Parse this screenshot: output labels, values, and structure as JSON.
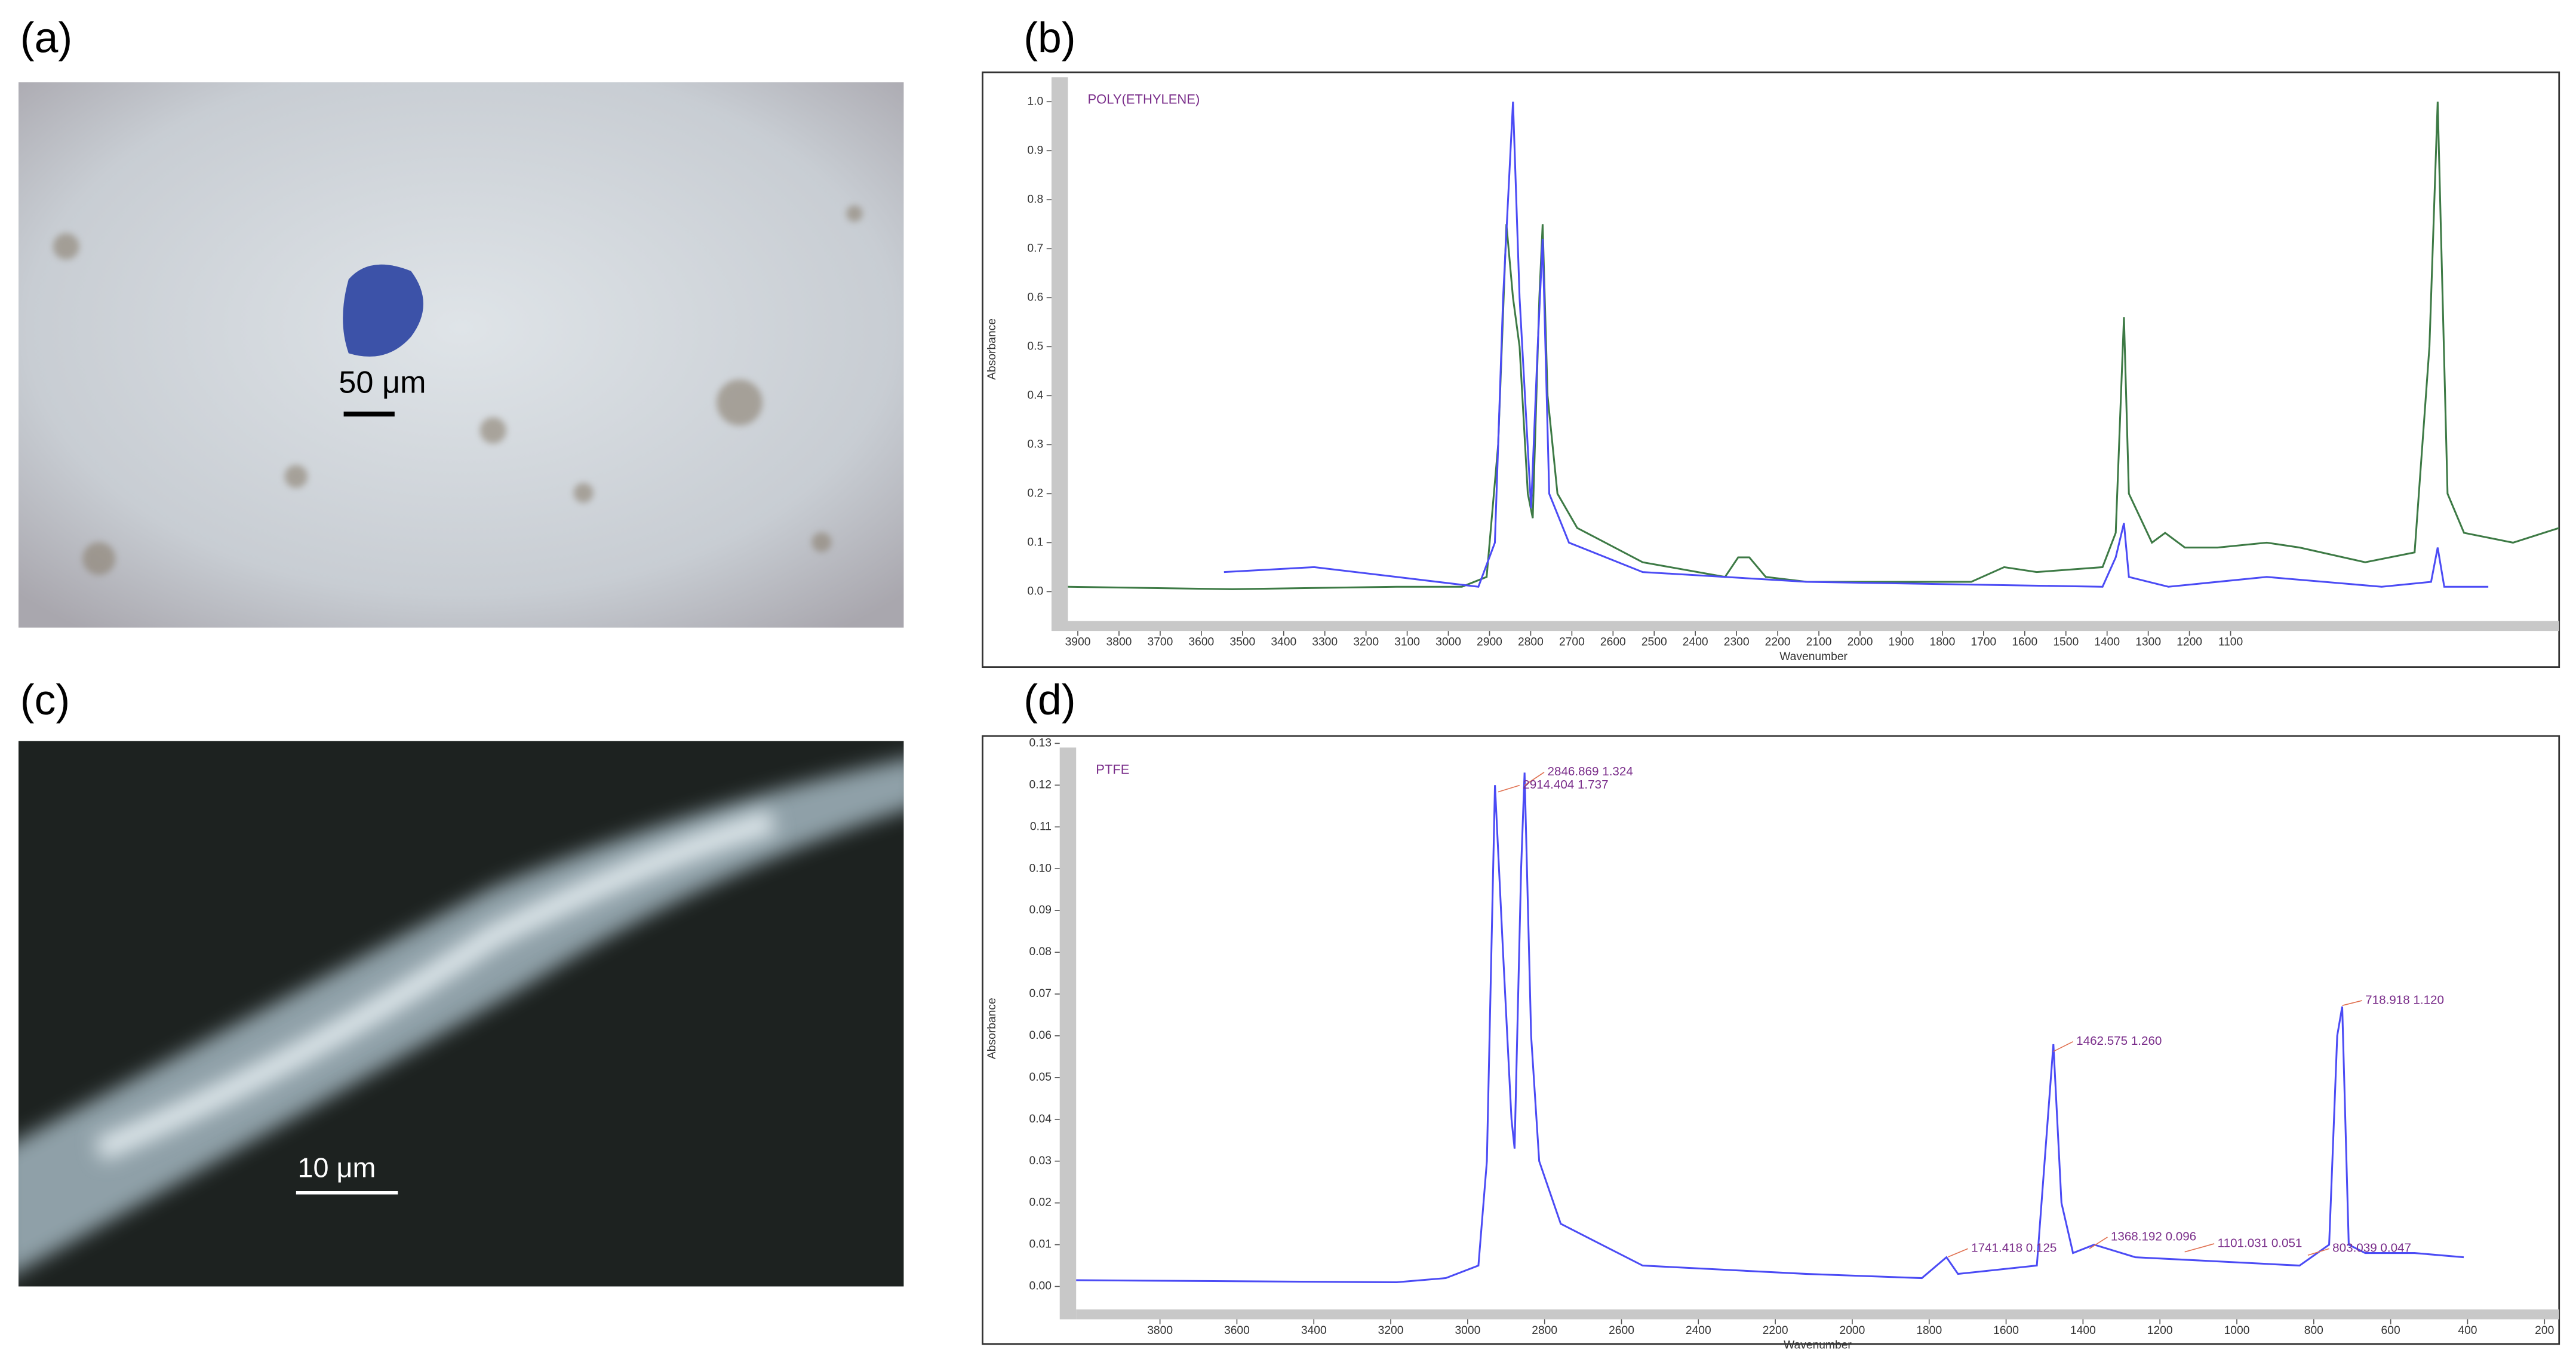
{
  "panels": {
    "a": {
      "label": "(a)",
      "scale_bar": "50 μm"
    },
    "b": {
      "label": "(b)"
    },
    "c": {
      "label": "(c)",
      "scale_bar": "10 μm"
    },
    "d": {
      "label": "(d)"
    }
  },
  "chart_data": [
    {
      "type": "line",
      "title": "POLY(ETHYLENE)",
      "x_label": "Wavenumber",
      "y_label": "Absorbance",
      "xlim": [
        3924,
        302
      ],
      "ylim": [
        -0.06,
        1.05
      ],
      "xticks": [
        3900,
        3800,
        3700,
        3600,
        3500,
        3400,
        3300,
        3200,
        3100,
        3000,
        2900,
        2800,
        2700,
        2600,
        2500,
        2400,
        2300,
        2200,
        2100,
        2000,
        1900,
        1800,
        1700,
        1600,
        1500,
        1400,
        1300,
        1200,
        1100
      ],
      "yticks": [
        {
          "value": 0,
          "label": "0.0"
        },
        0.1,
        0.2,
        0.3,
        0.4,
        0.5,
        0.6,
        0.7,
        0.8,
        0.9,
        {
          "value": 1,
          "label": "1.0"
        }
      ],
      "series": [
        {
          "color": "#3d7a45",
          "x": [
            3924,
            3525,
            3126,
            2967,
            2907,
            2879,
            2859,
            2843,
            2827,
            2807,
            2795,
            2779,
            2771,
            2759,
            2735,
            2687,
            2528,
            2328,
            2296,
            2269,
            2229,
            2129,
            1730,
            1650,
            1571,
            1411,
            1379,
            1359,
            1347,
            1291,
            1259,
            1211,
            1132,
            1012,
            932,
            773,
            653,
            617,
            597,
            573,
            533,
            414,
            302
          ],
          "values": [
            0.01,
            0.005,
            0.01,
            0.01,
            0.03,
            0.3,
            0.75,
            0.6,
            0.5,
            0.2,
            0.15,
            0.6,
            0.75,
            0.4,
            0.2,
            0.13,
            0.06,
            0.03,
            0.07,
            0.07,
            0.03,
            0.02,
            0.02,
            0.05,
            0.04,
            0.05,
            0.12,
            0.56,
            0.2,
            0.1,
            0.12,
            0.09,
            0.09,
            0.1,
            0.09,
            0.06,
            0.08,
            0.5,
            1.0,
            0.2,
            0.12,
            0.1,
            0.13
          ]
        },
        {
          "color": "#4b4bf5",
          "x": [
            3545,
            3326,
            3126,
            2927,
            2887,
            2867,
            2843,
            2827,
            2799,
            2783,
            2771,
            2755,
            2707,
            2528,
            2129,
            1411,
            1379,
            1359,
            1347,
            1251,
            1012,
            733,
            613,
            597,
            581,
            474
          ],
          "values": [
            0.04,
            0.05,
            0.03,
            0.01,
            0.1,
            0.6,
            1.0,
            0.6,
            0.17,
            0.5,
            0.72,
            0.2,
            0.1,
            0.04,
            0.02,
            0.01,
            0.07,
            0.14,
            0.03,
            0.01,
            0.03,
            0.01,
            0.02,
            0.09,
            0.01,
            0.01
          ]
        }
      ]
    },
    {
      "type": "line",
      "title": "PTFE",
      "x_label": "Wavenumber",
      "y_label": "Absorbance",
      "xlim": [
        4018,
        162
      ],
      "ylim": [
        -0.0055,
        0.129
      ],
      "xticks": [
        3800,
        3600,
        3400,
        3200,
        3000,
        2800,
        2600,
        2400,
        2200,
        2000,
        1800,
        1600,
        1400,
        1200,
        1000,
        800,
        600,
        400,
        200
      ],
      "yticks": [
        {
          "value": 0,
          "label": "0.00"
        },
        0.01,
        0.02,
        0.03,
        0.04,
        0.05,
        0.06,
        0.07,
        0.08,
        0.09,
        {
          "value": 0.1,
          "label": "0.10"
        },
        0.11,
        0.12,
        0.13
      ],
      "annotations": [
        "2846.869  1.324",
        "2914.404  1.737",
        "1462.575  1.260",
        "1741.418  0.125",
        "1368.192  0.096",
        "1101.031  0.051",
        "803.039  0.047",
        "718.918  1.120"
      ],
      "series": [
        {
          "color": "#4b4bf5",
          "x": [
            4018,
            3185,
            3057,
            2972,
            2950,
            2929,
            2908,
            2886,
            2878,
            2861,
            2852,
            2835,
            2814,
            2758,
            2545,
            2118,
            1819,
            1755,
            1725,
            1520,
            1477,
            1456,
            1426,
            1371,
            1264,
            837,
            760,
            739,
            726,
            709,
            666,
            538,
            410
          ],
          "values": [
            0.0015,
            0.001,
            0.002,
            0.005,
            0.03,
            0.12,
            0.08,
            0.04,
            0.033,
            0.1,
            0.123,
            0.06,
            0.03,
            0.015,
            0.005,
            0.003,
            0.002,
            0.007,
            0.003,
            0.005,
            0.058,
            0.02,
            0.008,
            0.01,
            0.007,
            0.005,
            0.01,
            0.06,
            0.067,
            0.01,
            0.008,
            0.008,
            0.007
          ]
        }
      ]
    }
  ]
}
